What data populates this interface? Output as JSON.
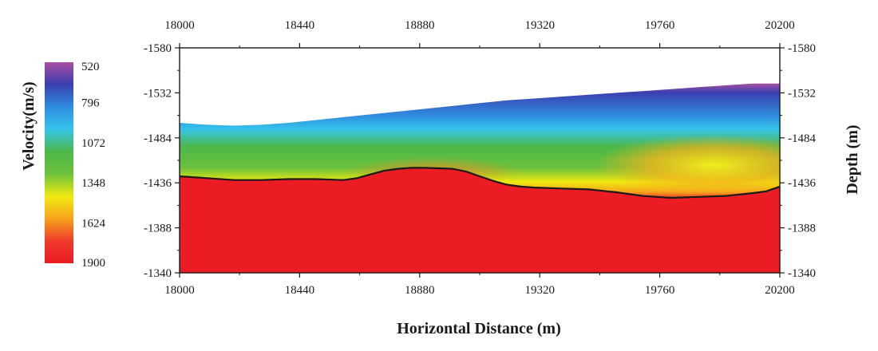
{
  "chart_data": {
    "type": "heatmap",
    "title": "",
    "xlabel": "Horizontal Distance (m)",
    "ylabel": "Depth (m)",
    "colorbar_label": "Velocity(m/s)",
    "xlim": [
      18000,
      20200
    ],
    "ylim": [
      -1580,
      -1340
    ],
    "x_ticks": [
      18000,
      18440,
      18880,
      19320,
      19760,
      20200
    ],
    "y_ticks": [
      -1580,
      -1532,
      -1484,
      -1436,
      -1388,
      -1340
    ],
    "colorbar_ticks": [
      520,
      796,
      1072,
      1348,
      1624,
      1900
    ],
    "colorbar_range": [
      520,
      1900
    ],
    "colormap": [
      "#a84fa0",
      "#3b3fb0",
      "#2f8de0",
      "#35c4ea",
      "#4cb84a",
      "#6cc13c",
      "#f0ea10",
      "#f6a21c",
      "#ee3b2a",
      "#ec1c24"
    ],
    "grid": false,
    "legend_position": "left",
    "surface_boundary": {
      "x": [
        18000,
        18100,
        18200,
        18300,
        18400,
        18500,
        18600,
        18700,
        18800,
        18900,
        19000,
        19100,
        19200,
        19300,
        19400,
        19500,
        19600,
        19700,
        19800,
        19900,
        20000,
        20100,
        20200
      ],
      "y": [
        -1500,
        -1498,
        -1497,
        -1498,
        -1500,
        -1503,
        -1506,
        -1509,
        -1512,
        -1515,
        -1518,
        -1521,
        -1524,
        -1526,
        -1528,
        -1530,
        -1532,
        -1534,
        -1536,
        -1538,
        -1540,
        -1542,
        -1542
      ]
    },
    "interface_line": {
      "x": [
        18000,
        18100,
        18200,
        18300,
        18400,
        18500,
        18600,
        18650,
        18700,
        18750,
        18800,
        18850,
        18900,
        19000,
        19050,
        19100,
        19150,
        19200,
        19250,
        19300,
        19400,
        19500,
        19600,
        19700,
        19800,
        19900,
        20000,
        20100,
        20150,
        20200
      ],
      "y": [
        -1443,
        -1441,
        -1439,
        -1439,
        -1440,
        -1440,
        -1439,
        -1441,
        -1445,
        -1449,
        -1451,
        -1452,
        -1452,
        -1451,
        -1448,
        -1443,
        -1438,
        -1434,
        -1432,
        -1431,
        -1430,
        -1429,
        -1426,
        -1422,
        -1420,
        -1421,
        -1422,
        -1425,
        -1427,
        -1432
      ]
    },
    "low_velocity_top": {
      "value": 520
    },
    "high_velocity_base": {
      "value": 1900
    }
  }
}
